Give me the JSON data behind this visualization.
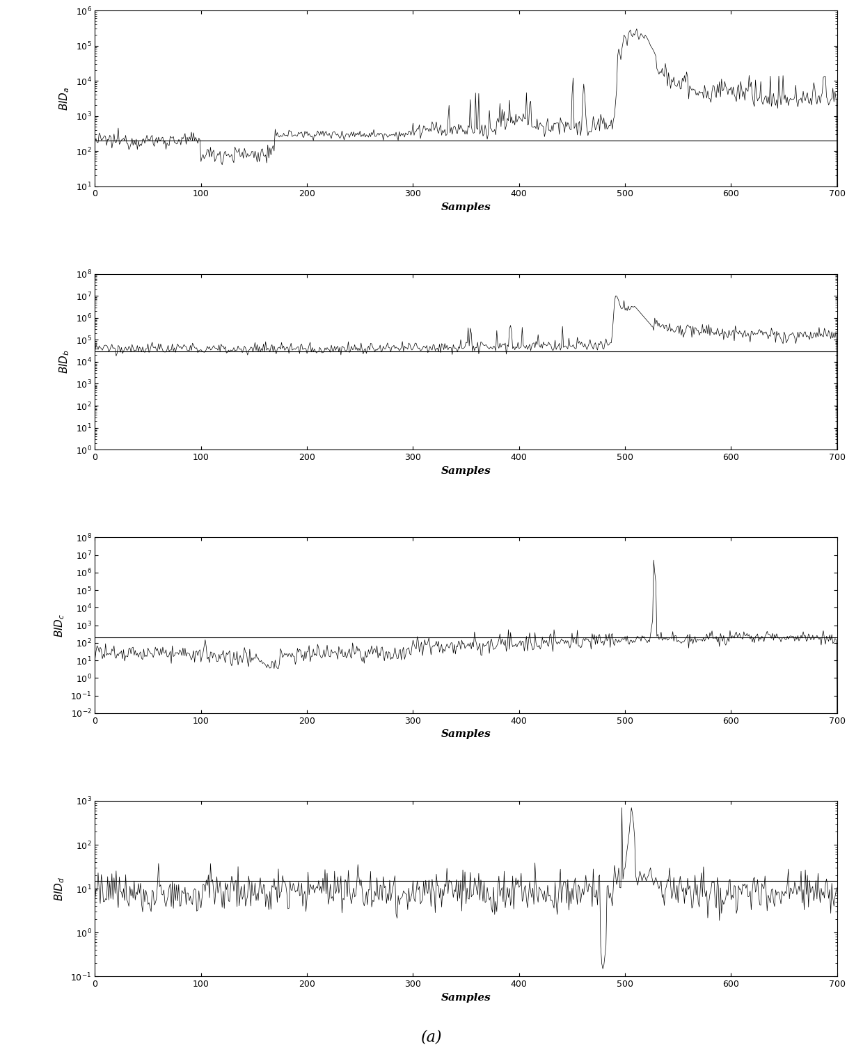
{
  "n_samples": 701,
  "xlim": [
    0,
    700
  ],
  "xticks": [
    0,
    100,
    200,
    300,
    400,
    500,
    600,
    700
  ],
  "xlabel": "Samples",
  "figure_label": "(a)",
  "background_color": "#ffffff",
  "line_color": "#000000",
  "figsize": [
    12.4,
    15.09
  ],
  "dpi": 100,
  "plot_a": {
    "ylabel": "BID_a",
    "ylim_low": 10,
    "ylim_high": 1000000,
    "threshold": 200,
    "base_low": 200,
    "dip_level": 80,
    "spike_peak": 200000,
    "settle_level": 3000
  },
  "plot_b": {
    "ylabel": "BID_b",
    "ylim_low": 1,
    "ylim_high": 100000000,
    "threshold": 30000,
    "base_level": 40000,
    "spike_peak": 10000000,
    "settle_level": 200000
  },
  "plot_c": {
    "ylabel": "BID_c",
    "ylim_low": 0.01,
    "ylim_high": 100000000,
    "threshold": 200,
    "base_low": 20,
    "base_high": 100,
    "spike_peak": 5000000,
    "settle_level": 200
  },
  "plot_d": {
    "ylabel": "BID_d",
    "ylim_low": 0.1,
    "ylim_high": 1000,
    "threshold": 15,
    "base_level": 8,
    "spike_peak": 700,
    "deep_drop": 0.15
  }
}
